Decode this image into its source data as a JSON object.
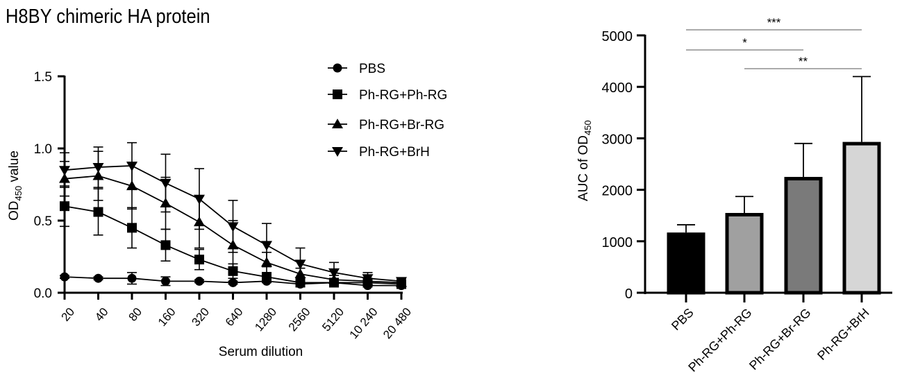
{
  "title": "H8BY chimeric HA protein",
  "chart_data": [
    {
      "type": "line",
      "title": "H8BY chimeric HA protein",
      "xlabel": "Serum dilution",
      "ylabel": "OD",
      "ylabel_sub": "450",
      "ylabel_suffix": " value",
      "categories": [
        "20",
        "40",
        "80",
        "160",
        "320",
        "640",
        "1280",
        "2560",
        "5120",
        "10 240",
        "20 480"
      ],
      "yticks": [
        "0.0",
        "0.5",
        "1.0",
        "1.5"
      ],
      "ylim": [
        0,
        1.5
      ],
      "legend_position": "top-right",
      "series": [
        {
          "name": "PBS",
          "marker": "circle",
          "values": [
            0.11,
            0.1,
            0.1,
            0.08,
            0.08,
            0.07,
            0.08,
            0.06,
            0.07,
            0.05,
            0.05
          ],
          "errors": [
            0.01,
            0.01,
            0.04,
            0.03,
            0.01,
            0.01,
            0.01,
            0.01,
            0.01,
            0.01,
            0.01
          ]
        },
        {
          "name": "Ph-RG+Ph-RG",
          "marker": "square",
          "values": [
            0.6,
            0.56,
            0.45,
            0.33,
            0.23,
            0.15,
            0.11,
            0.07,
            0.07,
            0.07,
            0.06
          ],
          "errors": [
            0.14,
            0.16,
            0.14,
            0.11,
            0.07,
            0.05,
            0.03,
            0.02,
            0.01,
            0.01,
            0.01
          ]
        },
        {
          "name": "Ph-RG+Br-RG",
          "marker": "triangle-up",
          "values": [
            0.79,
            0.81,
            0.74,
            0.62,
            0.49,
            0.33,
            0.21,
            0.13,
            0.09,
            0.08,
            0.07
          ],
          "errors": [
            0.12,
            0.17,
            0.16,
            0.18,
            0.18,
            0.17,
            0.07,
            0.04,
            0.03,
            0.02,
            0.01
          ]
        },
        {
          "name": "Ph-RG+BrH",
          "marker": "triangle-down",
          "values": [
            0.85,
            0.87,
            0.88,
            0.76,
            0.65,
            0.46,
            0.33,
            0.2,
            0.14,
            0.1,
            0.08
          ],
          "errors": [
            0.12,
            0.14,
            0.16,
            0.2,
            0.21,
            0.18,
            0.15,
            0.11,
            0.07,
            0.04,
            0.02
          ]
        }
      ]
    },
    {
      "type": "bar",
      "ylabel": "AUC of OD",
      "ylabel_sub": "450",
      "categories": [
        "PBS",
        "Ph-RG+Ph-RG",
        "Ph-RG+Br-RG",
        "Ph-RG+BrH"
      ],
      "values": [
        1170,
        1550,
        2250,
        2930
      ],
      "errors": [
        150,
        320,
        650,
        1270
      ],
      "colors": [
        "#000000",
        "#a0a0a0",
        "#7a7a7a",
        "#d6d6d6"
      ],
      "yticks": [
        "0",
        "1000",
        "2000",
        "3000",
        "4000",
        "5000"
      ],
      "ylim": [
        0,
        5000
      ],
      "significance": [
        {
          "from": 0,
          "to": 3,
          "label": "***"
        },
        {
          "from": 0,
          "to": 2,
          "label": "*"
        },
        {
          "from": 1,
          "to": 3,
          "label": "**"
        }
      ]
    }
  ]
}
